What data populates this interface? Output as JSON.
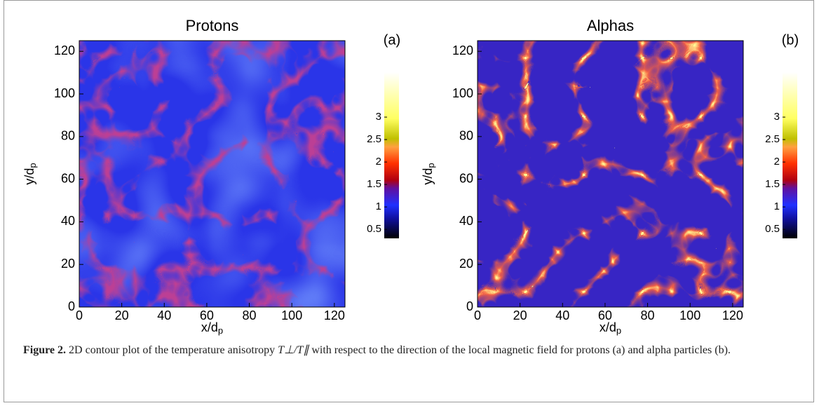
{
  "chart_data": [
    {
      "type": "heatmap",
      "title": "Protons",
      "panel_label": "(a)",
      "xlabel": "x/d",
      "xlabel_sub": "p",
      "ylabel": "y/d",
      "ylabel_sub": "p",
      "xlim": [
        0,
        125
      ],
      "xticks": [
        0,
        20,
        40,
        60,
        80,
        100,
        120
      ],
      "ylim": [
        0,
        125
      ],
      "yticks": [
        0,
        20,
        40,
        60,
        80,
        100,
        120
      ],
      "clim": [
        0.3,
        4.0
      ],
      "cticks": [
        0.5,
        1.0,
        1.5,
        2.0,
        2.5,
        3.0
      ]
    },
    {
      "type": "heatmap",
      "title": "Alphas",
      "panel_label": "(b)",
      "xlabel": "x/d",
      "xlabel_sub": "p",
      "ylabel": "y/d",
      "ylabel_sub": "p",
      "xlim": [
        0,
        125
      ],
      "xticks": [
        0,
        20,
        40,
        60,
        80,
        100,
        120
      ],
      "ylim": [
        0,
        125
      ],
      "yticks": [
        0,
        20,
        40,
        60,
        80,
        100,
        120
      ],
      "clim": [
        0.3,
        4.0
      ],
      "cticks": [
        0.5,
        1.0,
        1.5,
        2.0,
        2.5,
        3.0
      ]
    }
  ],
  "caption": {
    "label": "Figure 2.",
    "text_before": "2D contour plot of the temperature anisotropy",
    "math": "T⊥/T∥",
    "text_after": "with respect to the direction of the local magnetic field for protons (a) and alpha particles (b)."
  }
}
